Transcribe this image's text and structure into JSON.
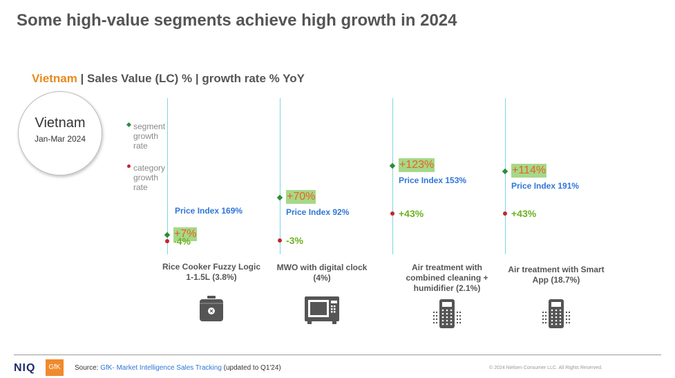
{
  "title": "Some high-value segments achieve high growth in 2024",
  "subtitle": {
    "country": "Vietnam",
    "rest": " | Sales Value (LC) % | growth rate % YoY"
  },
  "badge": {
    "line1": "Vietnam",
    "line2": "Jan-Mar 2024"
  },
  "legend": {
    "segment": "segment growth rate",
    "category": "category growth rate"
  },
  "colors": {
    "segment_marker": "#2e8b3a",
    "category_marker": "#c3262b",
    "segment_text": "#e8621c",
    "segment_highlight": "#a6d889",
    "category_text": "#6cb21f",
    "price_index": "#2f76d8",
    "country": "#e8891c"
  },
  "chart_data": {
    "type": "scatter",
    "y_unit": "% YoY growth",
    "series": [
      {
        "name": "segment growth rate",
        "values": [
          7,
          70,
          123,
          114
        ]
      },
      {
        "name": "category growth rate",
        "values": [
          -4,
          -3,
          43,
          43
        ]
      }
    ],
    "categories": [
      {
        "label": "Rice Cooker Fuzzy Logic 1-1.5L (3.8%)",
        "segment_growth": "+7%",
        "category_growth": "-4%",
        "price_index": "Price Index 169%",
        "icon": "rice-cooker-icon"
      },
      {
        "label": "MWO with digital clock (4%)",
        "segment_growth": "+70%",
        "category_growth": "-3%",
        "price_index": "Price Index 92%",
        "icon": "microwave-icon"
      },
      {
        "label": "Air treatment with combined cleaning + humidifier (2.1%)",
        "segment_growth": "+123%",
        "category_growth": "+43%",
        "price_index": "Price Index 153%",
        "icon": "air-purifier-icon"
      },
      {
        "label": "Air treatment with Smart App (18.7%)",
        "segment_growth": "+114%",
        "category_growth": "+43%",
        "price_index": "Price Index 191%",
        "icon": "air-purifier-icon"
      }
    ]
  },
  "footer": {
    "logo_niq": "NIQ",
    "logo_gfk": "GfK",
    "source_prefix": "Source: ",
    "source_link": "GfK- Market Intelligence Sales Tracking",
    "source_suffix": " (updated to Q1'24)",
    "copyright": "© 2024 Nielsen Consumer LLC. All Rights Reserved."
  }
}
